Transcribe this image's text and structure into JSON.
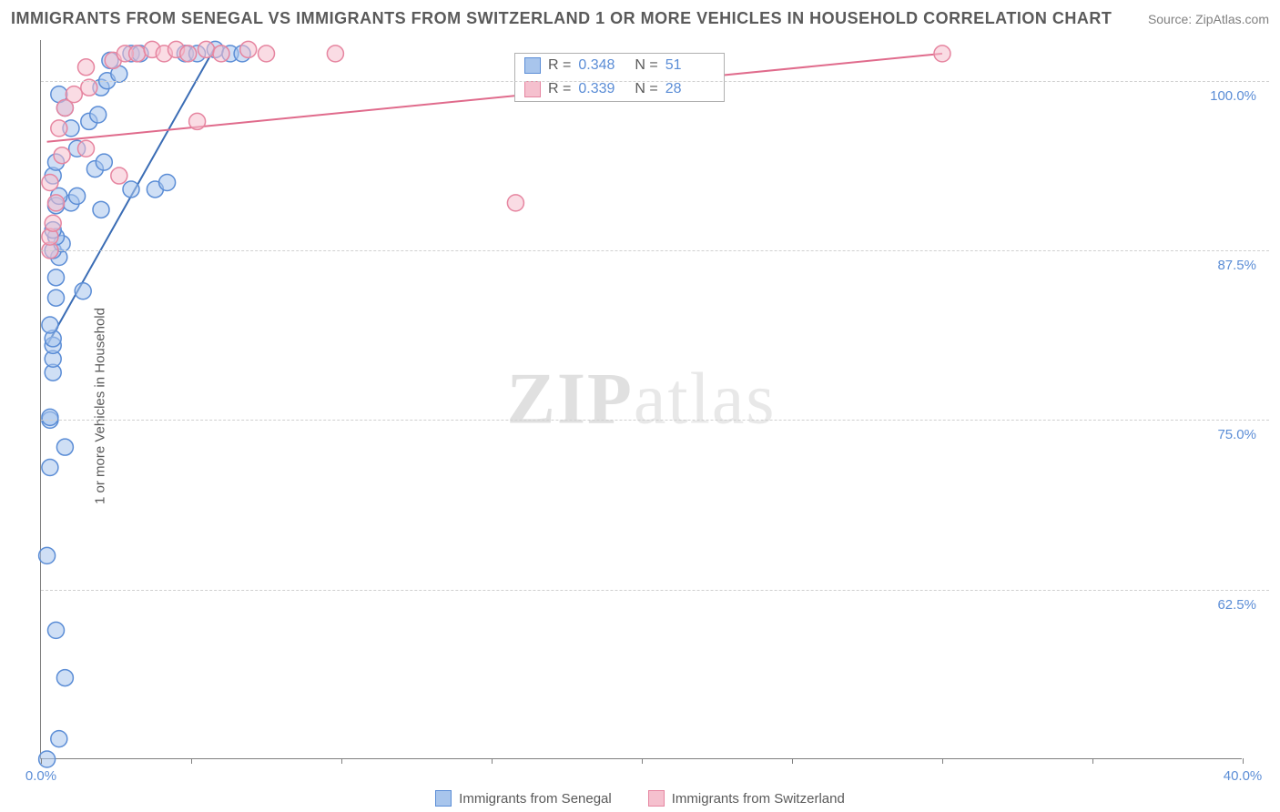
{
  "title": "IMMIGRANTS FROM SENEGAL VS IMMIGRANTS FROM SWITZERLAND 1 OR MORE VEHICLES IN HOUSEHOLD CORRELATION CHART",
  "source_label": "Source: ZipAtlas.com",
  "y_axis_label": "1 or more Vehicles in Household",
  "watermark": {
    "bold": "ZIP",
    "light": "atlas"
  },
  "chart": {
    "type": "scatter",
    "xlim": [
      0,
      40
    ],
    "ylim": [
      50,
      103
    ],
    "x_ticks": [
      0,
      5,
      10,
      15,
      20,
      25,
      30,
      35,
      40
    ],
    "x_tick_labels": {
      "0": "0.0%",
      "40": "40.0%"
    },
    "y_gridlines": [
      62.5,
      75.0,
      87.5,
      100.0
    ],
    "y_tick_labels": [
      "62.5%",
      "75.0%",
      "87.5%",
      "100.0%"
    ],
    "background_color": "#ffffff",
    "grid_color": "#d0d0d0",
    "axis_color": "#808080",
    "tick_label_color": "#5b8dd6",
    "series": [
      {
        "name": "Immigrants from Senegal",
        "marker_color_fill": "#a8c5ec",
        "marker_color_stroke": "#5b8dd6",
        "marker_fill_opacity": 0.55,
        "marker_radius": 9,
        "line_color": "#3b6db5",
        "line_width": 2,
        "R": "0.348",
        "N": "51",
        "trend": {
          "x1": 0.2,
          "y1": 80.5,
          "x2": 5.8,
          "y2": 102.5
        },
        "points": [
          [
            0.2,
            50.0
          ],
          [
            0.6,
            51.5
          ],
          [
            0.8,
            56.0
          ],
          [
            0.5,
            59.5
          ],
          [
            0.2,
            65.0
          ],
          [
            0.3,
            71.5
          ],
          [
            0.8,
            73.0
          ],
          [
            0.3,
            75.0
          ],
          [
            0.3,
            75.2
          ],
          [
            0.4,
            78.5
          ],
          [
            0.4,
            79.5
          ],
          [
            0.4,
            80.5
          ],
          [
            0.4,
            81.0
          ],
          [
            0.3,
            82.0
          ],
          [
            0.5,
            84.0
          ],
          [
            1.4,
            84.5
          ],
          [
            0.5,
            85.5
          ],
          [
            0.6,
            87.0
          ],
          [
            0.4,
            87.5
          ],
          [
            0.7,
            88.0
          ],
          [
            0.5,
            88.5
          ],
          [
            0.4,
            89.0
          ],
          [
            2.0,
            90.5
          ],
          [
            0.5,
            90.8
          ],
          [
            1.0,
            91.0
          ],
          [
            0.6,
            91.5
          ],
          [
            1.2,
            91.5
          ],
          [
            3.0,
            92.0
          ],
          [
            3.8,
            92.0
          ],
          [
            4.2,
            92.5
          ],
          [
            0.4,
            93.0
          ],
          [
            1.8,
            93.5
          ],
          [
            0.5,
            94.0
          ],
          [
            2.1,
            94.0
          ],
          [
            1.2,
            95.0
          ],
          [
            1.0,
            96.5
          ],
          [
            1.6,
            97.0
          ],
          [
            1.9,
            97.5
          ],
          [
            0.8,
            98.0
          ],
          [
            0.6,
            99.0
          ],
          [
            2.0,
            99.5
          ],
          [
            2.2,
            100.0
          ],
          [
            2.6,
            100.5
          ],
          [
            2.3,
            101.5
          ],
          [
            3.0,
            102.0
          ],
          [
            3.3,
            102.0
          ],
          [
            4.8,
            102.0
          ],
          [
            5.2,
            102.0
          ],
          [
            5.8,
            102.3
          ],
          [
            6.3,
            102.0
          ],
          [
            6.7,
            102.0
          ]
        ]
      },
      {
        "name": "Immigrants from Switzerland",
        "marker_color_fill": "#f5c0ce",
        "marker_color_stroke": "#e685a0",
        "marker_fill_opacity": 0.55,
        "marker_radius": 9,
        "line_color": "#e06b8c",
        "line_width": 2,
        "R": "0.339",
        "N": "28",
        "trend": {
          "x1": 0.2,
          "y1": 95.5,
          "x2": 30.0,
          "y2": 102.0
        },
        "points": [
          [
            0.3,
            87.5
          ],
          [
            0.3,
            88.5
          ],
          [
            0.4,
            89.5
          ],
          [
            0.5,
            91.0
          ],
          [
            0.3,
            92.5
          ],
          [
            2.6,
            93.0
          ],
          [
            0.7,
            94.5
          ],
          [
            1.5,
            95.0
          ],
          [
            0.6,
            96.5
          ],
          [
            5.2,
            97.0
          ],
          [
            0.8,
            98.0
          ],
          [
            1.1,
            99.0
          ],
          [
            1.6,
            99.5
          ],
          [
            1.5,
            101.0
          ],
          [
            2.4,
            101.5
          ],
          [
            2.8,
            102.0
          ],
          [
            3.2,
            102.0
          ],
          [
            3.7,
            102.3
          ],
          [
            4.1,
            102.0
          ],
          [
            4.5,
            102.3
          ],
          [
            4.9,
            102.0
          ],
          [
            5.5,
            102.3
          ],
          [
            6.0,
            102.0
          ],
          [
            6.9,
            102.3
          ],
          [
            7.5,
            102.0
          ],
          [
            9.8,
            102.0
          ],
          [
            15.8,
            91.0
          ],
          [
            30.0,
            102.0
          ]
        ]
      }
    ]
  },
  "stats_box": {
    "rows": [
      {
        "swatch_fill": "#a8c5ec",
        "swatch_stroke": "#5b8dd6",
        "R_label": "R =",
        "R": "0.348",
        "N_label": "N =",
        "N": "51"
      },
      {
        "swatch_fill": "#f5c0ce",
        "swatch_stroke": "#e685a0",
        "R_label": "R =",
        "R": "0.339",
        "N_label": "N =",
        "N": "28"
      }
    ]
  },
  "bottom_legend": [
    {
      "swatch_fill": "#a8c5ec",
      "swatch_stroke": "#5b8dd6",
      "label": "Immigrants from Senegal"
    },
    {
      "swatch_fill": "#f5c0ce",
      "swatch_stroke": "#e685a0",
      "label": "Immigrants from Switzerland"
    }
  ]
}
